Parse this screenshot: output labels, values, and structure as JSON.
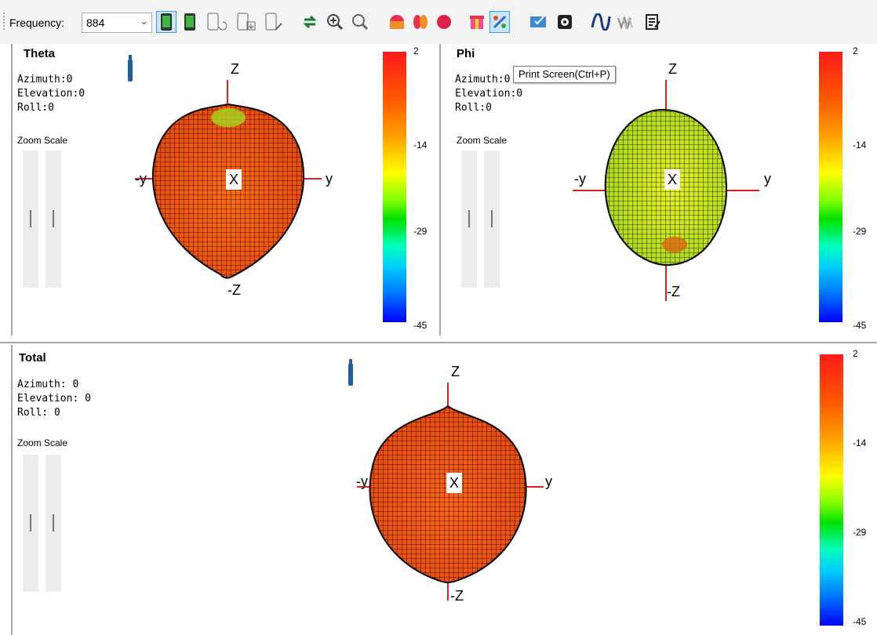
{
  "toolbar": {
    "frequency_label": "Frequency:",
    "frequency_value": "884",
    "active_button": "print-screen",
    "buttons": [
      "phone-green-icon",
      "phone-green-2-icon",
      "phone-rotate-icon",
      "phone-download-icon",
      "phone-edit-icon",
      "swap-arrows-icon",
      "zoom-in-icon",
      "zoom-out-icon",
      "sphere-half-icon",
      "sphere-split-icon",
      "sphere-red-icon",
      "gift-box-icon",
      "print-screen-icon",
      "monitor-check-icon",
      "gear-box-icon",
      "wave-icon",
      "multi-wave-icon",
      "notes-icon"
    ]
  },
  "tooltip": {
    "text": "Print Screen(Ctrl+P)"
  },
  "panels": {
    "theta": {
      "title": "Theta",
      "azimuth": "Azimuth:0",
      "elevation": "Elevation:0",
      "roll": "Roll:0",
      "zoom_scale": "Zoom Scale"
    },
    "phi": {
      "title": "Phi",
      "azimuth": "Azimuth:0",
      "elevation": "Elevation:0",
      "roll": "Roll:0",
      "zoom_scale": "Zoom Scale"
    },
    "total": {
      "title": "Total",
      "azimuth": "Azimuth: 0",
      "elevation": "Elevation: 0",
      "roll": "Roll: 0",
      "zoom_scale": "Zoom Scale"
    }
  },
  "axes": {
    "z": "Z",
    "neg_z": "-Z",
    "y": "y",
    "neg_y": "-y",
    "x": "X"
  },
  "colorbar": {
    "ticks": [
      "2",
      "-14",
      "-29",
      "-45"
    ]
  },
  "colors": {
    "theta_mesh": "#ff5a10",
    "phi_mesh": "#c8f01e",
    "total_mesh": "#ff5010",
    "axis": "#e02020"
  }
}
